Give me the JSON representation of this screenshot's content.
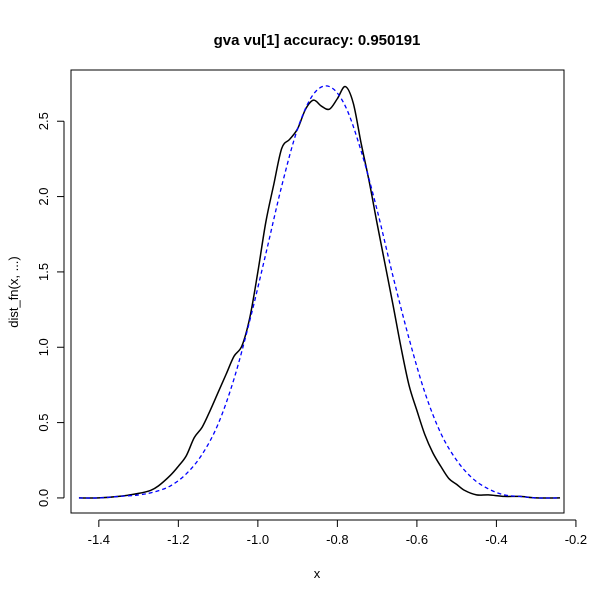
{
  "chart_data": {
    "type": "line",
    "title": "gva vu[1] accuracy: 0.950191",
    "xlabel": "x",
    "ylabel": "dist_fn(x, ...)",
    "xlim": [
      -1.47,
      -0.23
    ],
    "ylim": [
      -0.1,
      2.84
    ],
    "x_ticks": [
      -1.4,
      -1.2,
      -1.0,
      -0.8,
      -0.6,
      -0.4,
      -0.2
    ],
    "x_tick_labels": [
      "-1.4",
      "-1.2",
      "-1.0",
      "-0.8",
      "-0.6",
      "-0.4",
      "-0.2"
    ],
    "y_ticks": [
      0.0,
      0.5,
      1.0,
      1.5,
      2.0,
      2.5
    ],
    "y_tick_labels": [
      "0.0",
      "0.5",
      "1.0",
      "1.5",
      "2.0",
      "2.5"
    ],
    "grid": false,
    "legend": "none",
    "series": [
      {
        "style": "solid",
        "color": "#000000",
        "x": [
          -1.45,
          -1.4,
          -1.35,
          -1.3,
          -1.27,
          -1.25,
          -1.22,
          -1.2,
          -1.18,
          -1.16,
          -1.14,
          -1.12,
          -1.1,
          -1.08,
          -1.06,
          -1.04,
          -1.02,
          -1.0,
          -0.98,
          -0.96,
          -0.94,
          -0.92,
          -0.9,
          -0.88,
          -0.86,
          -0.84,
          -0.82,
          -0.8,
          -0.78,
          -0.76,
          -0.74,
          -0.72,
          -0.7,
          -0.68,
          -0.66,
          -0.64,
          -0.62,
          -0.6,
          -0.58,
          -0.56,
          -0.54,
          -0.52,
          -0.5,
          -0.48,
          -0.45,
          -0.42,
          -0.38,
          -0.34,
          -0.3,
          -0.24
        ],
        "y": [
          0.0,
          0.0,
          0.01,
          0.03,
          0.05,
          0.08,
          0.15,
          0.21,
          0.28,
          0.4,
          0.47,
          0.58,
          0.7,
          0.82,
          0.94,
          1.01,
          1.2,
          1.5,
          1.83,
          2.08,
          2.32,
          2.38,
          2.45,
          2.58,
          2.64,
          2.6,
          2.58,
          2.65,
          2.73,
          2.62,
          2.35,
          2.1,
          1.82,
          1.55,
          1.28,
          1.0,
          0.75,
          0.58,
          0.42,
          0.3,
          0.21,
          0.13,
          0.09,
          0.05,
          0.02,
          0.02,
          0.01,
          0.01,
          0.0,
          0.0
        ]
      },
      {
        "style": "dashed",
        "color": "#0000ff",
        "x": [
          -1.45,
          -1.4,
          -1.35,
          -1.3,
          -1.26,
          -1.22,
          -1.18,
          -1.14,
          -1.1,
          -1.06,
          -1.02,
          -0.98,
          -0.94,
          -0.9,
          -0.86,
          -0.82,
          -0.78,
          -0.74,
          -0.7,
          -0.66,
          -0.62,
          -0.58,
          -0.54,
          -0.5,
          -0.46,
          -0.42,
          -0.38,
          -0.34,
          -0.3,
          -0.24
        ],
        "y": [
          0.0,
          0.0,
          0.01,
          0.02,
          0.04,
          0.08,
          0.16,
          0.29,
          0.49,
          0.79,
          1.18,
          1.62,
          2.07,
          2.45,
          2.68,
          2.73,
          2.6,
          2.3,
          1.91,
          1.47,
          1.06,
          0.7,
          0.43,
          0.25,
          0.13,
          0.06,
          0.02,
          0.01,
          0.0,
          0.0
        ]
      }
    ]
  }
}
